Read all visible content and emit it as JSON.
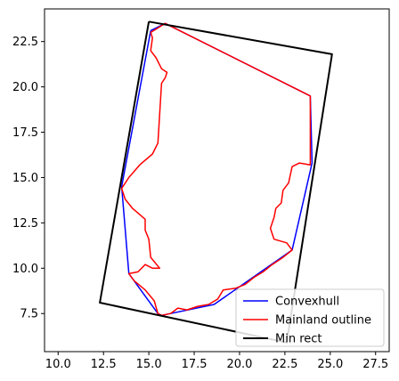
{
  "chart_data": {
    "type": "line",
    "title": "",
    "xlabel": "",
    "ylabel": "",
    "xlim": [
      9.25,
      28.25
    ],
    "ylim": [
      5.4,
      24.3
    ],
    "xticks": [
      10.0,
      12.5,
      15.0,
      17.5,
      20.0,
      22.5,
      25.0,
      27.5
    ],
    "xtick_labels": [
      "10.0",
      "12.5",
      "15.0",
      "17.5",
      "20.0",
      "22.5",
      "25.0",
      "27.5"
    ],
    "yticks": [
      7.5,
      10.0,
      12.5,
      15.0,
      17.5,
      20.0,
      22.5
    ],
    "ytick_labels": [
      "7.5",
      "10.0",
      "12.5",
      "15.0",
      "17.5",
      "20.0",
      "22.5"
    ],
    "grid": false,
    "legend_position": "bottom-right",
    "series": [
      {
        "name": "Convexhull",
        "color": "#0000ff",
        "points": [
          [
            15.1,
            23.1
          ],
          [
            15.9,
            23.5
          ],
          [
            23.9,
            19.5
          ],
          [
            24.0,
            15.8
          ],
          [
            22.9,
            11.0
          ],
          [
            18.6,
            8.0
          ],
          [
            15.7,
            7.4
          ],
          [
            15.5,
            7.5
          ],
          [
            13.9,
            9.7
          ],
          [
            13.5,
            14.5
          ],
          [
            15.1,
            23.1
          ]
        ]
      },
      {
        "name": "Mainland outline",
        "color": "#ff0000",
        "points": [
          [
            15.1,
            23.0
          ],
          [
            15.9,
            23.5
          ],
          [
            23.9,
            19.5
          ],
          [
            23.9,
            15.7
          ],
          [
            23.3,
            15.8
          ],
          [
            22.9,
            15.6
          ],
          [
            22.7,
            14.7
          ],
          [
            22.4,
            14.3
          ],
          [
            22.3,
            13.6
          ],
          [
            22.0,
            13.3
          ],
          [
            21.9,
            12.8
          ],
          [
            21.7,
            12.2
          ],
          [
            21.9,
            11.6
          ],
          [
            22.6,
            11.4
          ],
          [
            22.9,
            11.0
          ],
          [
            22.4,
            10.6
          ],
          [
            21.8,
            10.2
          ],
          [
            21.3,
            9.8
          ],
          [
            20.8,
            9.5
          ],
          [
            20.3,
            9.1
          ],
          [
            19.8,
            8.9
          ],
          [
            19.1,
            8.8
          ],
          [
            18.8,
            8.3
          ],
          [
            18.3,
            8.0
          ],
          [
            17.7,
            7.9
          ],
          [
            17.1,
            7.7
          ],
          [
            16.6,
            7.8
          ],
          [
            16.2,
            7.5
          ],
          [
            15.7,
            7.4
          ],
          [
            15.5,
            7.5
          ],
          [
            15.3,
            8.2
          ],
          [
            14.8,
            8.8
          ],
          [
            14.2,
            9.3
          ],
          [
            13.9,
            9.7
          ],
          [
            14.4,
            9.8
          ],
          [
            14.8,
            10.2
          ],
          [
            15.2,
            10.0
          ],
          [
            15.6,
            10.0
          ],
          [
            15.1,
            10.6
          ],
          [
            15.0,
            11.6
          ],
          [
            14.8,
            12.1
          ],
          [
            14.8,
            12.7
          ],
          [
            14.1,
            13.3
          ],
          [
            13.7,
            13.8
          ],
          [
            13.5,
            14.4
          ],
          [
            13.9,
            15.0
          ],
          [
            14.5,
            15.7
          ],
          [
            15.2,
            16.3
          ],
          [
            15.5,
            16.9
          ],
          [
            15.7,
            20.2
          ],
          [
            15.9,
            20.5
          ],
          [
            16.0,
            20.8
          ],
          [
            15.7,
            21.0
          ],
          [
            15.4,
            21.6
          ],
          [
            15.1,
            22.0
          ],
          [
            15.2,
            22.7
          ],
          [
            15.1,
            23.0
          ]
        ]
      },
      {
        "name": "Min rect",
        "color": "#000000",
        "points": [
          [
            15.0,
            23.6
          ],
          [
            25.1,
            21.8
          ],
          [
            22.6,
            5.9
          ],
          [
            12.3,
            8.1
          ],
          [
            15.0,
            23.6
          ]
        ]
      }
    ]
  }
}
